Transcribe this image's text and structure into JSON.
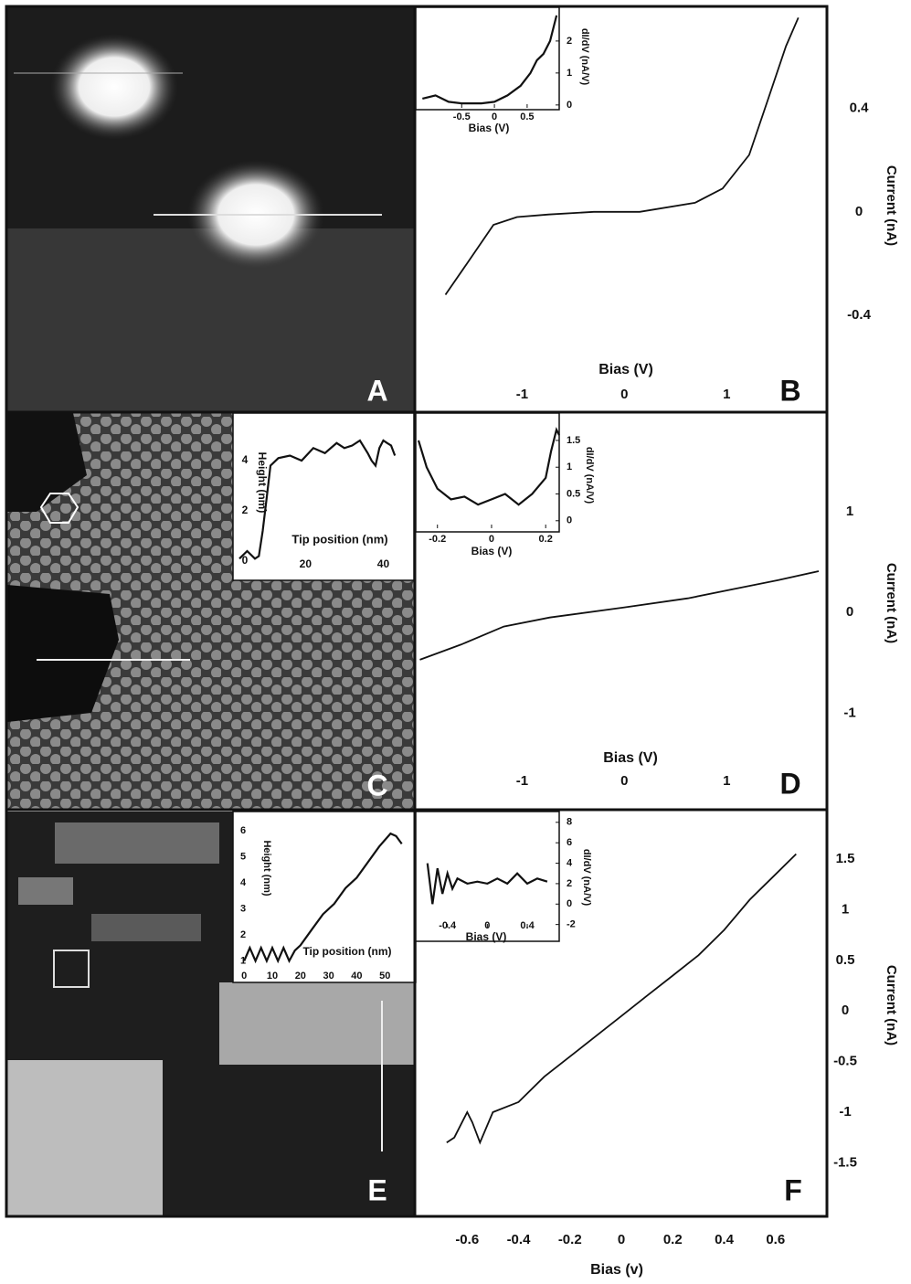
{
  "images": [
    {
      "label": "A"
    },
    {
      "label": "C"
    },
    {
      "label": "E"
    }
  ],
  "chart_data": [
    {
      "type": "line",
      "label": "B",
      "x_label": "Bias (V)",
      "y_label": "Current (nA)",
      "color": "#111",
      "x": [
        -1.75,
        -1.54,
        -1.28,
        -1.05,
        -0.74,
        -0.3,
        0.15,
        0.69,
        0.96,
        1.22,
        1.4,
        1.58,
        1.7
      ],
      "values": [
        -0.32,
        -0.2,
        -0.05,
        -0.02,
        -0.01,
        0,
        0,
        0.035,
        0.09,
        0.22,
        0.43,
        0.64,
        0.75
      ],
      "xlim": [
        -2.04,
        1.98
      ],
      "ylim": [
        -0.77,
        0.79
      ],
      "xticks": [
        -1,
        0,
        1
      ],
      "yticks": [
        -0.4,
        0,
        0.4
      ]
    },
    {
      "type": "line",
      "x_label": "Bias (V)",
      "y_label": "dI/dV (nA/V)",
      "color": "#111",
      "x": [
        -1.1,
        -0.9,
        -0.7,
        -0.5,
        -0.2,
        0,
        0.2,
        0.4,
        0.55,
        0.65,
        0.75,
        0.85,
        0.95
      ],
      "values": [
        0.2,
        0.3,
        0.1,
        0.05,
        0.05,
        0.1,
        0.3,
        0.6,
        1.0,
        1.4,
        1.6,
        2.0,
        2.8
      ],
      "xlim": [
        -1.16,
        0.99
      ],
      "ylim": [
        -0.09,
        2.94
      ],
      "xticks": [
        -0.5,
        0,
        0.5
      ],
      "yticks": [
        0,
        1,
        2
      ]
    },
    {
      "type": "line",
      "x_label": "Tip position (nm)",
      "y_label": "Height (nm)",
      "color": "#111",
      "x": [
        3,
        5,
        7,
        8,
        9,
        10,
        11,
        13,
        16,
        19,
        22,
        25,
        28,
        30,
        32,
        34,
        36,
        37,
        38,
        39,
        40,
        41,
        42,
        43
      ],
      "values": [
        0.1,
        0.4,
        0.1,
        0.2,
        1.2,
        2.5,
        3.8,
        4.1,
        4.2,
        4.0,
        4.5,
        4.3,
        4.7,
        4.5,
        4.6,
        4.8,
        4.3,
        4.0,
        3.8,
        4.5,
        4.8,
        4.7,
        4.6,
        4.2
      ],
      "xlim": [
        3,
        46
      ],
      "ylim": [
        -0.4,
        5.6
      ],
      "xticks": [
        20,
        40
      ],
      "yticks": [
        0,
        2,
        4
      ]
    },
    {
      "type": "line",
      "label": "D",
      "x_label": "Bias (V)",
      "y_label": "Current (nA)",
      "color": "#111",
      "x": [
        -2.0,
        -1.6,
        -1.18,
        -0.73,
        0,
        0.62,
        1.06,
        1.5,
        1.9
      ],
      "values": [
        -0.47,
        -0.32,
        -0.14,
        -0.05,
        0.05,
        0.14,
        0.23,
        0.32,
        0.41
      ],
      "xlim": [
        -2.04,
        1.98
      ],
      "ylim": [
        -1.95,
        1.98
      ],
      "xticks": [
        -1,
        0,
        1
      ],
      "yticks": [
        -1,
        0,
        1
      ]
    },
    {
      "type": "line",
      "x_label": "Bias (V)",
      "y_label": "dI/dV (nA/V)",
      "color": "#111",
      "x": [
        -0.27,
        -0.24,
        -0.2,
        -0.15,
        -0.1,
        -0.05,
        0,
        0.05,
        0.1,
        0.15,
        0.2,
        0.22,
        0.24,
        0.25
      ],
      "values": [
        1.5,
        1.0,
        0.6,
        0.4,
        0.45,
        0.3,
        0.4,
        0.5,
        0.3,
        0.5,
        0.8,
        1.3,
        1.7,
        1.6
      ],
      "xlim": [
        -0.27,
        0.25
      ],
      "ylim": [
        -0.14,
        1.96
      ],
      "xticks": [
        -0.2,
        0,
        0.2
      ],
      "yticks": [
        0,
        0.5,
        1,
        1.5
      ]
    },
    {
      "type": "line",
      "x_label": "Tip position  (nm)",
      "y_label": "Height (nm)",
      "color": "#111",
      "x": [
        0,
        2,
        4,
        6,
        8,
        10,
        12,
        14,
        16,
        18,
        20,
        24,
        28,
        32,
        36,
        40,
        44,
        48,
        52,
        54,
        56
      ],
      "values": [
        1,
        1.5,
        1,
        1.5,
        1,
        1.5,
        1,
        1.5,
        1,
        1.4,
        1.6,
        2.2,
        2.8,
        3.2,
        3.8,
        4.2,
        4.8,
        5.4,
        5.9,
        5.8,
        5.5
      ],
      "xlim": [
        -3,
        60
      ],
      "ylim": [
        0.7,
        6.5
      ],
      "xticks": [
        0,
        10,
        20,
        30,
        40,
        50
      ],
      "yticks": [
        1,
        2,
        3,
        4,
        5,
        6
      ]
    },
    {
      "type": "line",
      "x_label": "Bias (V)",
      "y_label": "dI/dV (nA/V)",
      "color": "#111",
      "x": [
        -0.6,
        -0.55,
        -0.5,
        -0.45,
        -0.4,
        -0.35,
        -0.3,
        -0.2,
        -0.1,
        0,
        0.1,
        0.2,
        0.3,
        0.4,
        0.5,
        0.6
      ],
      "values": [
        4,
        0,
        3.5,
        1,
        3,
        1.5,
        2.5,
        2,
        2.2,
        2,
        2.5,
        2,
        3,
        2,
        2.5,
        2.2
      ],
      "xlim": [
        -0.69,
        0.72
      ],
      "ylim": [
        -2.3,
        8.7
      ],
      "xticks": [
        -0.4,
        0,
        0.4
      ],
      "yticks": [
        -2,
        0,
        2,
        4,
        6,
        8
      ]
    },
    {
      "type": "line",
      "label": "F",
      "x_label": "Bias (v)",
      "y_label": "Current  (nA)",
      "color": "#111",
      "x": [
        -0.68,
        -0.65,
        -0.6,
        -0.58,
        -0.55,
        -0.5,
        -0.4,
        -0.3,
        -0.2,
        -0.1,
        0,
        0.1,
        0.2,
        0.3,
        0.4,
        0.5,
        0.6,
        0.68
      ],
      "values": [
        -1.3,
        -1.25,
        -1.0,
        -1.1,
        -1.3,
        -1.0,
        -0.9,
        -0.65,
        -0.45,
        -0.25,
        -0.05,
        0.15,
        0.35,
        0.55,
        0.8,
        1.1,
        1.35,
        1.55
      ],
      "xlim": [
        -0.8,
        0.8
      ],
      "ylim": [
        -2.02,
        1.97
      ],
      "xticks": [
        -0.6,
        -0.4,
        -0.2,
        0,
        0.2,
        0.4,
        0.6
      ],
      "yticks": [
        -1.5,
        -1,
        -0.5,
        0,
        0.5,
        1,
        1.5
      ]
    }
  ]
}
